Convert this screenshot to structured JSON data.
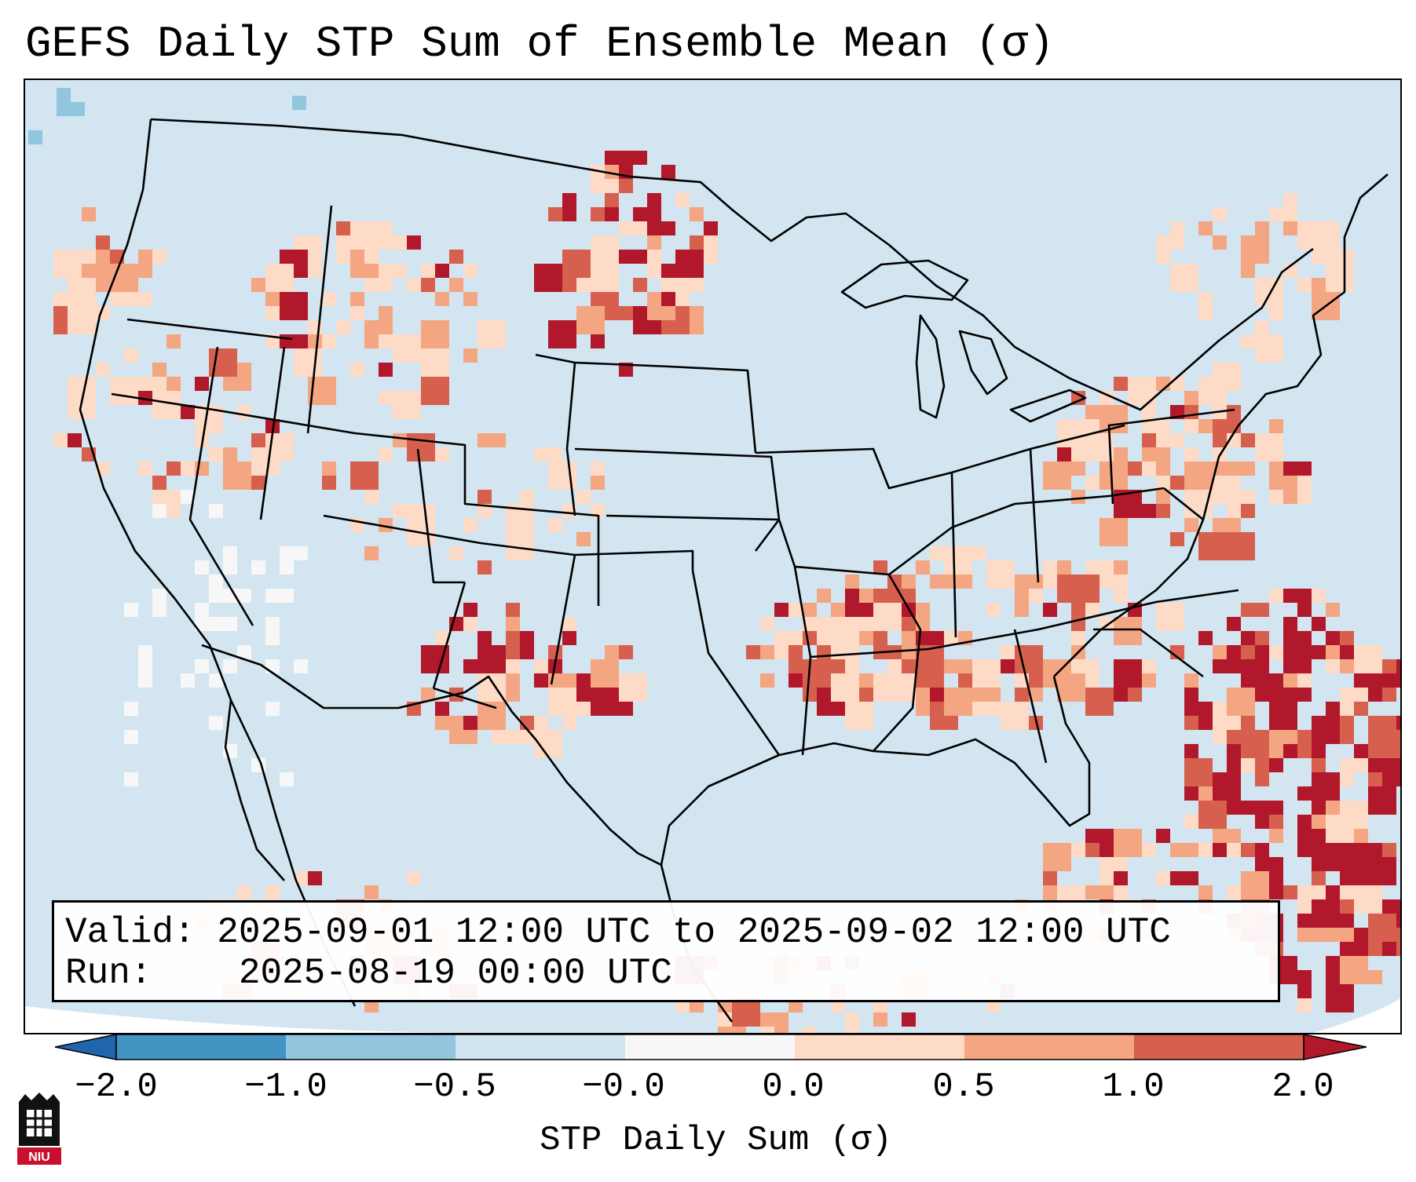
{
  "title": "GEFS Daily STP Sum of Ensemble Mean (σ)",
  "info_box": {
    "valid_label": "Valid:",
    "valid_value": "2025-09-01 12:00 UTC to 2025-09-02 12:00 UTC",
    "run_label": "Run:",
    "run_value": "2025-08-19 00:00 UTC"
  },
  "colorbar": {
    "label": "STP Daily Sum (σ)",
    "ticks": [
      "−2.0",
      "−1.0",
      "−0.5",
      "−0.0",
      "0.0",
      "0.5",
      "1.0",
      "2.0"
    ],
    "bins": [
      {
        "range": "<= -2.0",
        "color": "#2166ac"
      },
      {
        "range": "-2.0 to -1.0",
        "color": "#4393c3"
      },
      {
        "range": "-1.0 to -0.5",
        "color": "#92c5de"
      },
      {
        "range": "-0.5 to -0.0",
        "color": "#d1e5f0"
      },
      {
        "range": "-0.0 to 0.0",
        "color": "#f7f7f7"
      },
      {
        "range": "0.0 to 0.5",
        "color": "#fddbc7"
      },
      {
        "range": "0.5 to 1.0",
        "color": "#f4a582"
      },
      {
        "range": "1.0 to 2.0",
        "color": "#d6604d"
      },
      {
        "range": ">= 2.0",
        "color": "#b2182b"
      }
    ]
  },
  "logo": {
    "text": "NIU"
  },
  "map": {
    "projection": "Lambert Conformal (CONUS)",
    "background_color": "#d2e5f0",
    "highlights": [
      {
        "region": "Western North Dakota",
        "level": ">= 2.0"
      },
      {
        "region": "Arkansas",
        "level": "1.0 to 2.0"
      },
      {
        "region": "Tennessee / Kentucky",
        "level": "0.5 to 1.0"
      },
      {
        "region": "Mid-Atlantic",
        "level": "0.5 to 1.0"
      },
      {
        "region": "Western Atlantic offshore",
        "level": ">= 2.0"
      },
      {
        "region": "Northern Bahamas",
        "level": ">= 2.0"
      }
    ]
  }
}
